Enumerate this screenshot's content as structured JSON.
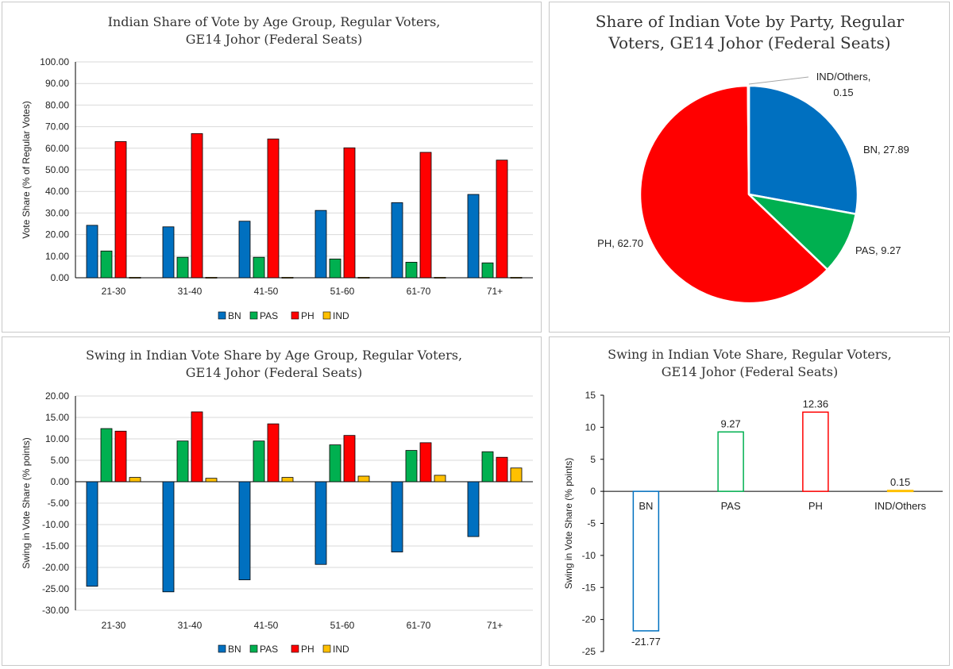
{
  "colors": {
    "BN": "#0070c0",
    "PAS": "#00b050",
    "PH": "#ff0000",
    "IND": "#ffc000"
  },
  "chart_data": [
    {
      "type": "bar",
      "title_lines": [
        "Indian Share of Vote by Age Group, Regular Voters,",
        "GE14 Johor (Federal Seats)"
      ],
      "ylabel": "Vote Share (% of Regular Votes)",
      "ylim": [
        0,
        100
      ],
      "yticks": [
        "0.00",
        "10.00",
        "20.00",
        "30.00",
        "40.00",
        "50.00",
        "60.00",
        "70.00",
        "80.00",
        "90.00",
        "100.00"
      ],
      "categories": [
        "21-30",
        "31-40",
        "41-50",
        "51-60",
        "61-70",
        "71+"
      ],
      "series": [
        {
          "name": "BN",
          "values": [
            24.3,
            23.6,
            26.2,
            31.2,
            34.8,
            38.6
          ]
        },
        {
          "name": "PAS",
          "values": [
            12.4,
            9.5,
            9.5,
            8.7,
            7.2,
            6.9
          ]
        },
        {
          "name": "PH",
          "values": [
            63.1,
            66.8,
            64.3,
            60.2,
            58.1,
            54.5
          ]
        },
        {
          "name": "IND",
          "values": [
            0.2,
            0.2,
            0.2,
            0.2,
            0.2,
            0.2
          ]
        }
      ],
      "legend": [
        "BN",
        "PAS",
        "PH",
        "IND"
      ]
    },
    {
      "type": "pie",
      "title_lines": [
        "Share of Indian Vote by Party, Regular",
        "Voters, GE14 Johor (Federal Seats)"
      ],
      "slices": [
        {
          "name": "BN",
          "value": 27.89,
          "label_lines": [
            "BN, 27.89"
          ]
        },
        {
          "name": "PAS",
          "value": 9.27,
          "label_lines": [
            "PAS, 9.27"
          ]
        },
        {
          "name": "PH",
          "value": 62.7,
          "label_lines": [
            "PH, 62.70"
          ]
        },
        {
          "name": "IND",
          "value": 0.15,
          "label_lines": [
            "IND/Others,",
            "0.15"
          ]
        }
      ]
    },
    {
      "type": "bar",
      "title_lines": [
        "Swing in Indian Vote Share by Age Group, Regular Voters,",
        "GE14 Johor (Federal Seats)"
      ],
      "ylabel": "Swing in Vote Share (% points)",
      "ylim": [
        -30,
        20
      ],
      "yticks": [
        "-30.00",
        "-25.00",
        "-20.00",
        "-15.00",
        "-10.00",
        "-5.00",
        "0.00",
        "5.00",
        "10.00",
        "15.00",
        "20.00"
      ],
      "categories": [
        "21-30",
        "31-40",
        "41-50",
        "51-60",
        "61-70",
        "71+"
      ],
      "series": [
        {
          "name": "BN",
          "values": [
            -24.4,
            -25.7,
            -22.9,
            -19.3,
            -16.4,
            -12.8
          ]
        },
        {
          "name": "PAS",
          "values": [
            12.4,
            9.5,
            9.5,
            8.6,
            7.3,
            7.0
          ]
        },
        {
          "name": "PH",
          "values": [
            11.8,
            16.3,
            13.5,
            10.8,
            9.1,
            5.7
          ]
        },
        {
          "name": "IND",
          "values": [
            1.0,
            0.8,
            1.0,
            1.3,
            1.5,
            3.2
          ]
        }
      ],
      "legend": [
        "BN",
        "PAS",
        "PH",
        "IND"
      ]
    },
    {
      "type": "bar",
      "title_lines": [
        "Swing in Indian Vote Share, Regular Voters,",
        "GE14 Johor (Federal Seats)"
      ],
      "ylabel": "Swing in Vote Share (% points)",
      "ylim": [
        -25,
        15
      ],
      "yticks": [
        "-25",
        "-20",
        "-15",
        "-10",
        "-5",
        "0",
        "5",
        "10",
        "15"
      ],
      "categories": [
        "BN",
        "PAS",
        "PH",
        "IND/Others"
      ],
      "values": [
        -21.77,
        9.27,
        12.36,
        0.15
      ],
      "data_labels": [
        "-21.77",
        "9.27",
        "12.36",
        "0.15"
      ]
    }
  ]
}
